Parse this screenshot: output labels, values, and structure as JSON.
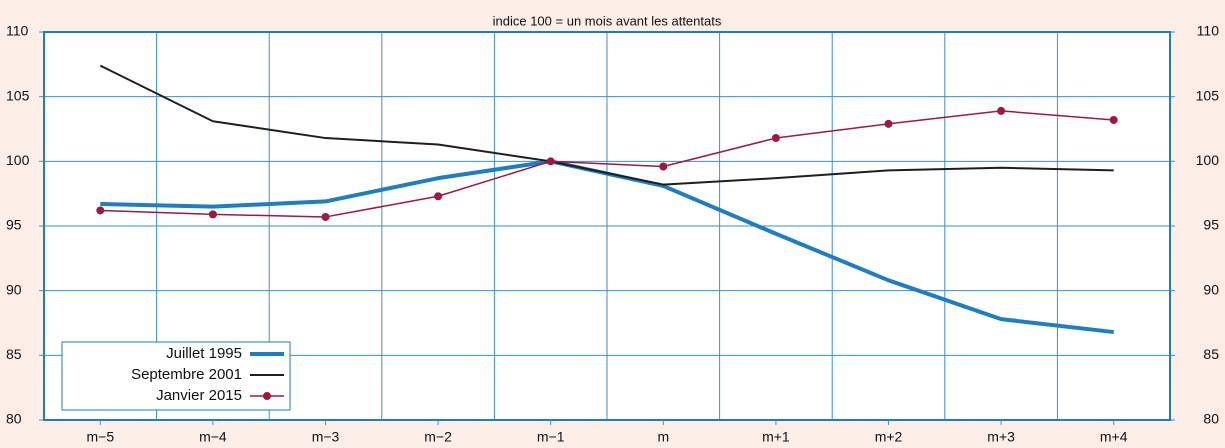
{
  "chart_data": {
    "type": "line",
    "title": "indice 100 = un mois avant les attentats",
    "categories": [
      "m−5",
      "m−4",
      "m−3",
      "m−2",
      "m−1",
      "m",
      "m+1",
      "m+2",
      "m+3",
      "m+4"
    ],
    "series": [
      {
        "name": "Juillet 1995",
        "color": "#1f7ec2",
        "values": [
          96.7,
          96.5,
          96.9,
          98.7,
          100,
          98.1,
          94.4,
          90.8,
          87.8,
          86.8
        ]
      },
      {
        "name": "Septembre 2001",
        "color": "#1e1e1e",
        "values": [
          107.4,
          103.1,
          101.8,
          101.3,
          100,
          98.2,
          98.7,
          99.3,
          99.5,
          99.3
        ]
      },
      {
        "name": "Janvier 2015",
        "color": "#9b1a40",
        "values": [
          96.2,
          95.9,
          95.7,
          97.3,
          100,
          99.6,
          101.8,
          102.9,
          103.9,
          103.2
        ]
      }
    ],
    "ylim": [
      80,
      110
    ],
    "yticks": [
      80,
      85,
      90,
      95,
      100,
      105,
      110
    ],
    "y2lim": [
      80,
      110
    ],
    "y2ticks": [
      80,
      85,
      90,
      95,
      100,
      105,
      110
    ],
    "grid": true,
    "legend": "lower left"
  }
}
